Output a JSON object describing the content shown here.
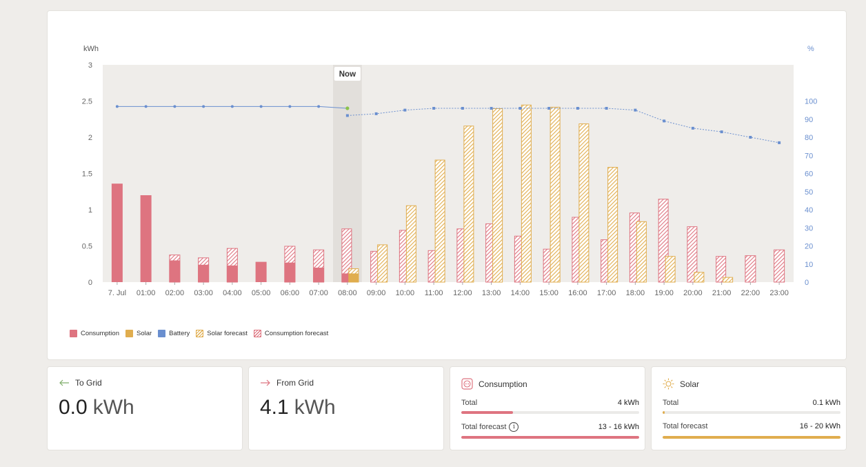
{
  "chart": {
    "y_left_unit": "kWh",
    "y_right_unit": "%",
    "now_label": "Now"
  },
  "legend": [
    {
      "label": "Consumption",
      "color": "#de7480",
      "style": "solid"
    },
    {
      "label": "Solar",
      "color": "#e0ad4e",
      "style": "solid"
    },
    {
      "label": "Battery",
      "color": "#6a8fcf",
      "style": "solid"
    },
    {
      "label": "Solar forecast",
      "color": "#e0ad4e",
      "style": "hatched"
    },
    {
      "label": "Consumption forecast",
      "color": "#de7480",
      "style": "hatched"
    }
  ],
  "chart_data": {
    "type": "bar",
    "categories": [
      "7. Jul",
      "01:00",
      "02:00",
      "03:00",
      "04:00",
      "05:00",
      "06:00",
      "07:00",
      "08:00",
      "09:00",
      "10:00",
      "11:00",
      "12:00",
      "13:00",
      "14:00",
      "15:00",
      "16:00",
      "17:00",
      "18:00",
      "19:00",
      "20:00",
      "21:00",
      "22:00",
      "23:00"
    ],
    "ylim": [
      0,
      3
    ],
    "y_ticks": [
      "0",
      "0.5",
      "1",
      "1.5",
      "2",
      "2.5",
      "3"
    ],
    "y2lim": [
      0,
      120
    ],
    "y2_ticks": [
      "0",
      "10",
      "20",
      "30",
      "40",
      "50",
      "60",
      "70",
      "80",
      "90",
      "100"
    ],
    "now_index": 8,
    "series": [
      {
        "name": "Consumption",
        "values": [
          1.36,
          1.2,
          0.3,
          0.24,
          0.23,
          0.28,
          0.27,
          0.2,
          0.12,
          null,
          null,
          null,
          null,
          null,
          null,
          null,
          null,
          null,
          null,
          null,
          null,
          null,
          null,
          null
        ]
      },
      {
        "name": "Solar",
        "values": [
          null,
          null,
          null,
          null,
          null,
          null,
          null,
          null,
          0.12,
          null,
          null,
          null,
          null,
          null,
          null,
          null,
          null,
          null,
          null,
          null,
          null,
          null,
          null,
          null
        ]
      },
      {
        "name": "Consumption forecast",
        "values": [
          null,
          null,
          0.38,
          0.34,
          0.47,
          null,
          0.5,
          0.45,
          0.74,
          0.43,
          0.72,
          0.44,
          0.74,
          0.81,
          0.64,
          0.46,
          0.9,
          0.59,
          0.96,
          1.15,
          0.77,
          0.36,
          0.37,
          0.45
        ]
      },
      {
        "name": "Solar forecast",
        "values": [
          null,
          null,
          null,
          null,
          null,
          null,
          null,
          null,
          0.19,
          0.52,
          1.06,
          1.69,
          2.16,
          2.4,
          2.45,
          2.42,
          2.19,
          1.59,
          0.84,
          0.36,
          0.14,
          0.07,
          null,
          null
        ]
      },
      {
        "name": "Battery",
        "values": [
          97,
          97,
          97,
          97,
          97,
          97,
          97,
          97,
          96,
          null,
          null,
          null,
          null,
          null,
          null,
          null,
          null,
          null,
          null,
          null,
          null,
          null,
          null,
          null
        ]
      },
      {
        "name": "Battery forecast",
        "values": [
          null,
          null,
          null,
          null,
          null,
          null,
          null,
          null,
          92,
          93,
          95,
          96,
          96,
          96,
          96,
          96,
          96,
          96,
          95,
          89,
          85,
          83,
          80,
          77
        ]
      }
    ]
  },
  "stats": {
    "to_grid": {
      "label": "To Grid",
      "value": "0.0",
      "unit": "kWh"
    },
    "from_grid": {
      "label": "From Grid",
      "value": "4.1",
      "unit": "kWh"
    },
    "consumption": {
      "label": "Consumption",
      "total_label": "Total",
      "total_value": "4 kWh",
      "total_fraction": 0.29,
      "forecast_label": "Total forecast",
      "forecast_value": "13 - 16 kWh",
      "forecast_fraction": 1.0,
      "color": "#de7480"
    },
    "solar": {
      "label": "Solar",
      "total_label": "Total",
      "total_value": "0.1 kWh",
      "total_fraction": 0.01,
      "forecast_label": "Total forecast",
      "forecast_value": "16 - 20 kWh",
      "forecast_fraction": 1.0,
      "color": "#e0ad4e"
    }
  }
}
